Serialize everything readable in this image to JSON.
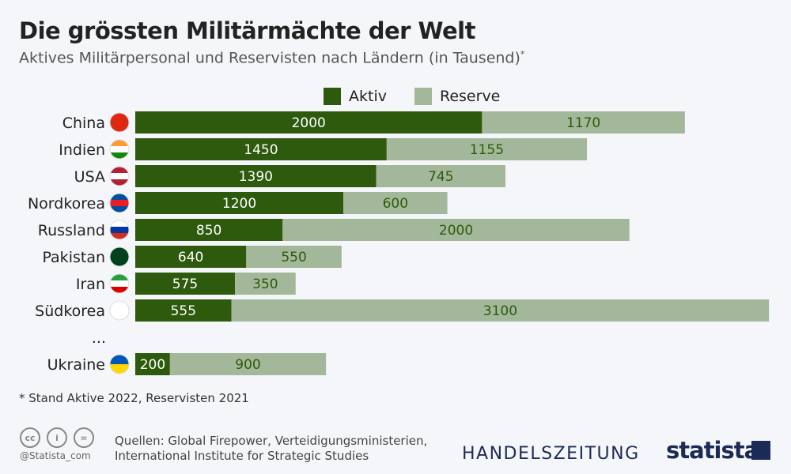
{
  "title": "Die grössten Militärmächte der Welt",
  "subtitle": "Aktives Militärpersonal und Reservisten nach Ländern (in Tausend)",
  "subtitle_mark": "*",
  "chart_data": {
    "type": "bar",
    "orientation": "horizontal",
    "stacked": true,
    "title": "Die grössten Militärmächte der Welt",
    "categories": [
      "China",
      "Indien",
      "USA",
      "Nordkorea",
      "Russland",
      "Pakistan",
      "Iran",
      "Südkorea",
      "...",
      "Ukraine"
    ],
    "series": [
      {
        "name": "Aktiv",
        "color": "#2d5a0c",
        "values": [
          2000,
          1450,
          1390,
          1200,
          850,
          640,
          575,
          555,
          null,
          200
        ]
      },
      {
        "name": "Reserve",
        "color": "#a3b89b",
        "values": [
          1170,
          1155,
          745,
          600,
          2000,
          550,
          350,
          3100,
          null,
          900
        ]
      }
    ],
    "legend": "top",
    "grid": false
  },
  "flags": [
    "china-flag-icon",
    "india-flag-icon",
    "usa-flag-icon",
    "north-korea-flag-icon",
    "russia-flag-icon",
    "pakistan-flag-icon",
    "iran-flag-icon",
    "south-korea-flag-icon",
    null,
    "ukraine-flag-icon"
  ],
  "note": "* Stand Aktive 2022, Reservisten 2021",
  "footer": {
    "sources": "Quellen: Global Firepower, Verteidigungsministerien,",
    "sources2": "International Institute for Strategic Studies",
    "handle": "@Statista_com",
    "partner": "HANDELSZEITUNG",
    "brand": "statista"
  }
}
